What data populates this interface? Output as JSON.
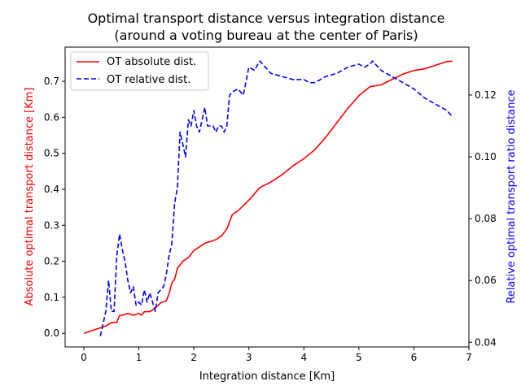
{
  "chart_data": {
    "type": "line",
    "title_line1": "Optimal transport distance versus integration distance",
    "title_line2": "(around a voting bureau at the center of Paris)",
    "xlabel": "Integration distance [Km]",
    "ylabel_left": "Absolute optimal transport distance [Km]",
    "ylabel_right": "Relative optimal transport ratio distance",
    "xlim": [
      -0.34,
      7.0
    ],
    "ylim_left": [
      -0.038,
      0.795
    ],
    "ylim_right": [
      0.0385,
      0.1355
    ],
    "x_ticks": [
      0,
      1,
      2,
      3,
      4,
      5,
      6,
      7
    ],
    "x_tick_labels": [
      "0",
      "1",
      "2",
      "3",
      "4",
      "5",
      "6",
      "7"
    ],
    "y_left_ticks": [
      0.0,
      0.1,
      0.2,
      0.3,
      0.4,
      0.5,
      0.6,
      0.7
    ],
    "y_left_tick_labels": [
      "0.0",
      "0.1",
      "0.2",
      "0.3",
      "0.4",
      "0.5",
      "0.6",
      "0.7"
    ],
    "y_right_ticks": [
      0.04,
      0.06,
      0.08,
      0.1,
      0.12
    ],
    "y_right_tick_labels": [
      "0.04",
      "0.06",
      "0.08",
      "0.10",
      "0.12"
    ],
    "grid": false,
    "legend_position": "top-left",
    "series": [
      {
        "name": "OT absolute dist.",
        "axis": "left",
        "color": "#ff0000",
        "dash": "solid",
        "x": [
          0.0,
          0.2,
          0.4,
          0.5,
          0.6,
          0.65,
          0.7,
          0.8,
          0.9,
          1.0,
          1.05,
          1.1,
          1.2,
          1.3,
          1.4,
          1.5,
          1.55,
          1.6,
          1.65,
          1.7,
          1.8,
          1.9,
          2.0,
          2.1,
          2.2,
          2.3,
          2.4,
          2.5,
          2.6,
          2.7,
          2.8,
          3.0,
          3.2,
          3.4,
          3.6,
          3.8,
          4.0,
          4.2,
          4.4,
          4.6,
          4.8,
          5.0,
          5.2,
          5.4,
          5.6,
          5.8,
          6.0,
          6.2,
          6.4,
          6.6,
          6.7
        ],
        "y": [
          0.0,
          0.01,
          0.02,
          0.03,
          0.03,
          0.05,
          0.05,
          0.055,
          0.05,
          0.055,
          0.05,
          0.06,
          0.06,
          0.07,
          0.085,
          0.09,
          0.11,
          0.14,
          0.15,
          0.18,
          0.2,
          0.21,
          0.23,
          0.24,
          0.25,
          0.255,
          0.26,
          0.27,
          0.29,
          0.33,
          0.34,
          0.37,
          0.405,
          0.42,
          0.44,
          0.465,
          0.485,
          0.51,
          0.545,
          0.585,
          0.625,
          0.66,
          0.685,
          0.69,
          0.705,
          0.72,
          0.73,
          0.735,
          0.745,
          0.755,
          0.756
        ]
      },
      {
        "name": "OT relative dist.",
        "axis": "right",
        "color": "#0000ff",
        "dash": "dashed",
        "x": [
          0.3,
          0.4,
          0.45,
          0.5,
          0.55,
          0.6,
          0.65,
          0.7,
          0.75,
          0.8,
          0.85,
          0.9,
          0.95,
          1.0,
          1.05,
          1.1,
          1.15,
          1.2,
          1.25,
          1.3,
          1.35,
          1.4,
          1.45,
          1.5,
          1.55,
          1.6,
          1.65,
          1.7,
          1.75,
          1.8,
          1.85,
          1.9,
          1.95,
          2.0,
          2.05,
          2.1,
          2.15,
          2.2,
          2.25,
          2.3,
          2.35,
          2.4,
          2.45,
          2.5,
          2.55,
          2.6,
          2.65,
          2.7,
          2.8,
          2.9,
          3.0,
          3.1,
          3.2,
          3.3,
          3.4,
          3.6,
          3.8,
          4.0,
          4.1,
          4.2,
          4.4,
          4.6,
          4.8,
          5.0,
          5.1,
          5.2,
          5.25,
          5.3,
          5.4,
          5.5,
          5.6,
          5.7,
          5.8,
          6.0,
          6.2,
          6.4,
          6.6,
          6.7
        ],
        "y": [
          0.042,
          0.05,
          0.06,
          0.05,
          0.05,
          0.068,
          0.075,
          0.07,
          0.066,
          0.06,
          0.056,
          0.058,
          0.052,
          0.053,
          0.052,
          0.057,
          0.053,
          0.056,
          0.053,
          0.05,
          0.056,
          0.057,
          0.058,
          0.062,
          0.068,
          0.072,
          0.085,
          0.09,
          0.108,
          0.104,
          0.1,
          0.112,
          0.11,
          0.115,
          0.11,
          0.108,
          0.112,
          0.116,
          0.11,
          0.11,
          0.11,
          0.108,
          0.11,
          0.11,
          0.108,
          0.11,
          0.12,
          0.121,
          0.122,
          0.12,
          0.129,
          0.128,
          0.131,
          0.129,
          0.127,
          0.126,
          0.125,
          0.125,
          0.124,
          0.124,
          0.126,
          0.127,
          0.129,
          0.13,
          0.129,
          0.13,
          0.131,
          0.13,
          0.128,
          0.127,
          0.126,
          0.125,
          0.124,
          0.122,
          0.119,
          0.117,
          0.115,
          0.113
        ]
      }
    ]
  }
}
